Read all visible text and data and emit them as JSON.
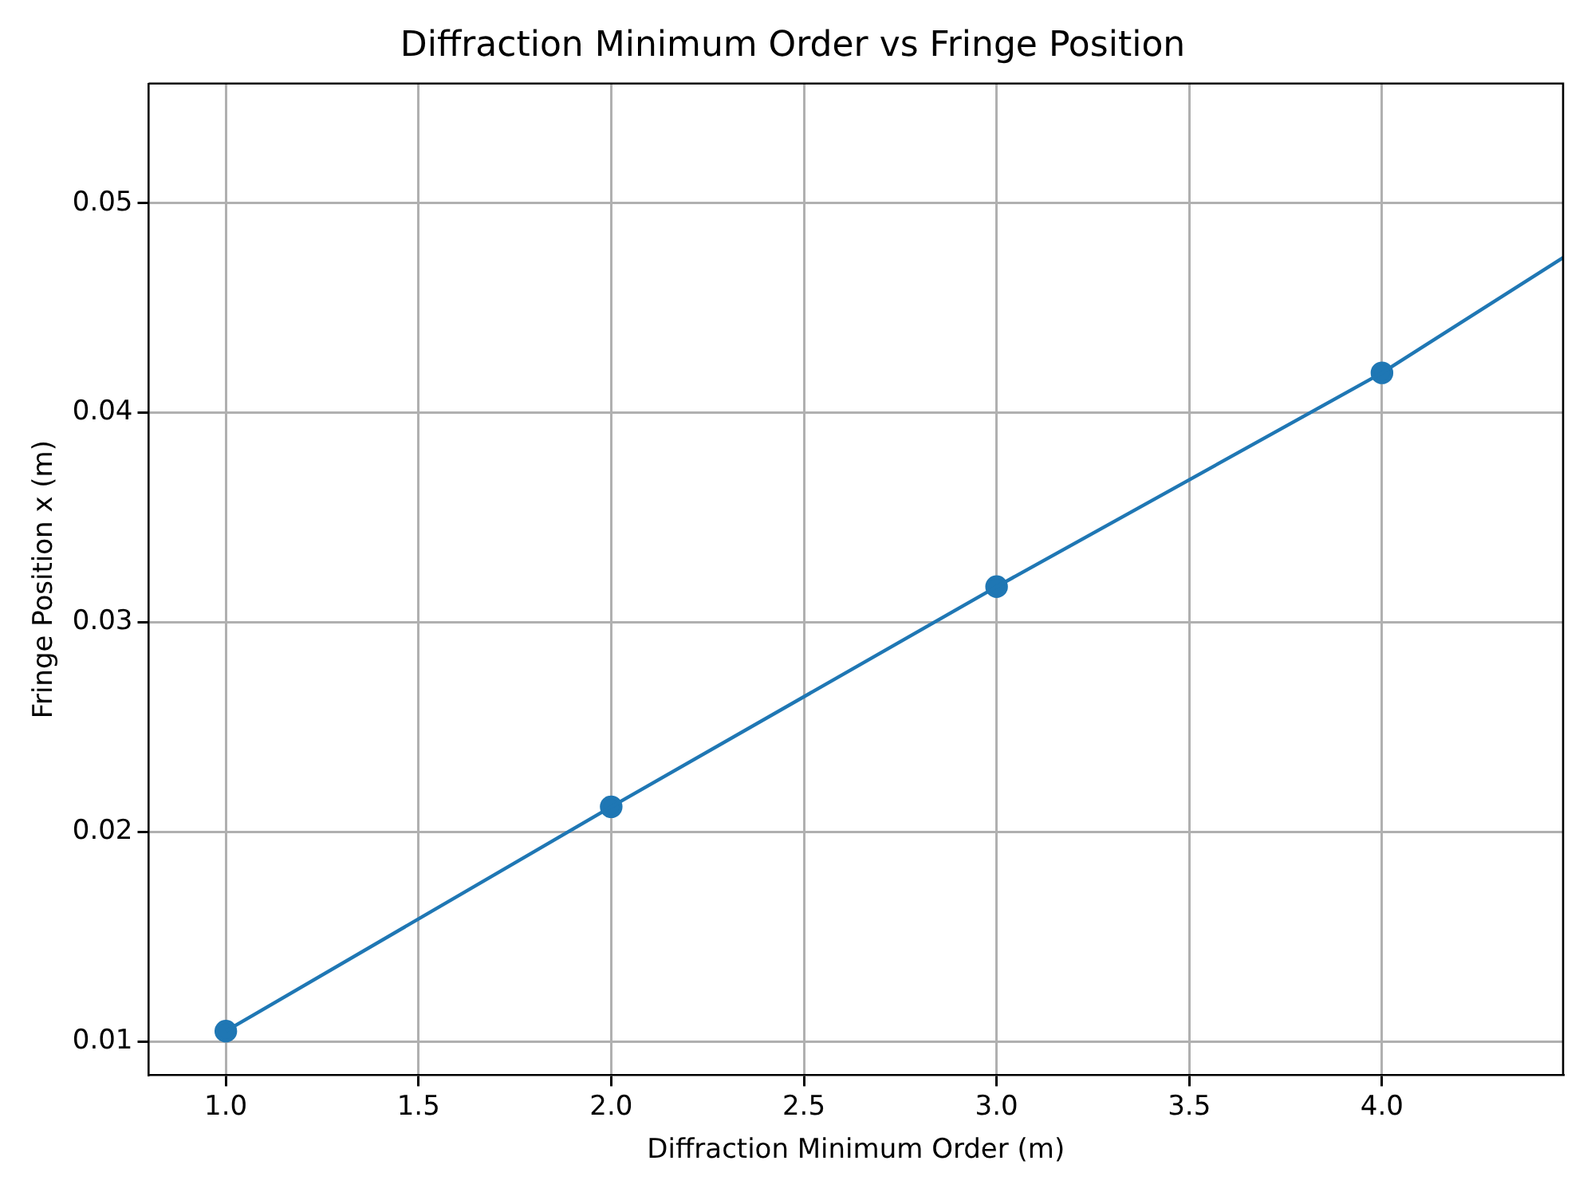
{
  "chart_data": {
    "type": "line",
    "title": "Diffraction Minimum Order vs Fringe Position",
    "xlabel": "Diffraction Minimum Order (m)",
    "ylabel": "Fringe Position x (m)",
    "series": [
      {
        "color": "#1f77b4",
        "marker": "none",
        "x": [
          1,
          2,
          3,
          4,
          4.47
        ],
        "values": [
          0.0105,
          0.0212,
          0.0317,
          0.0419,
          0.0474
        ]
      },
      {
        "type": "scatter",
        "color": "#1f77b4",
        "marker": "circle",
        "x": [
          1,
          2,
          3,
          4
        ],
        "values": [
          0.0105,
          0.0212,
          0.0317,
          0.0419
        ]
      }
    ],
    "xlim": [
      0.8,
      4.47
    ],
    "xticks": [
      {
        "value": 1,
        "label": "1.0"
      },
      {
        "value": 1.5,
        "label": "1.5"
      },
      {
        "value": 2,
        "label": "2.0"
      },
      {
        "value": 2.5,
        "label": "2.5"
      },
      {
        "value": 3,
        "label": "3.0"
      },
      {
        "value": 3.5,
        "label": "3.5"
      },
      {
        "value": 4,
        "label": "4.0"
      }
    ],
    "ylim": [
      0.0084,
      0.0557
    ],
    "yticks": [
      {
        "value": 0.01,
        "label": "0.01"
      },
      {
        "value": 0.02,
        "label": "0.02"
      },
      {
        "value": 0.03,
        "label": "0.03"
      },
      {
        "value": 0.04,
        "label": "0.04"
      },
      {
        "value": 0.05,
        "label": "0.05"
      }
    ],
    "grid": true,
    "legend": false,
    "line_style": "solid"
  }
}
